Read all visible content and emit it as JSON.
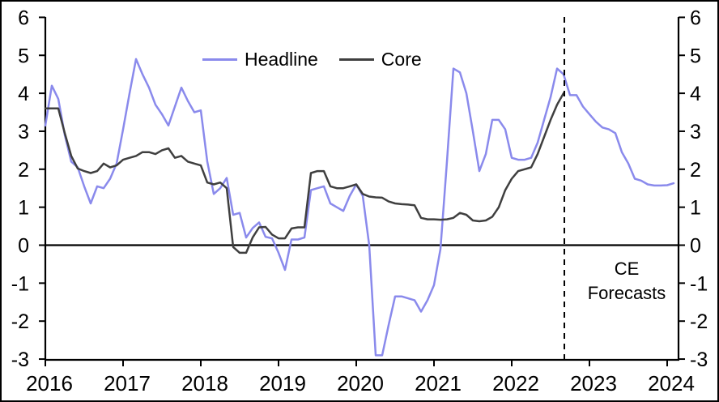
{
  "legend": {
    "headline_label": "Headline",
    "core_label": "Core"
  },
  "annotation": {
    "ce_line1": "CE",
    "ce_line2": "Forecasts"
  },
  "colors": {
    "headline": "#8a8aec",
    "core": "#3f3f3f",
    "axis": "#000000",
    "background": "#ffffff"
  },
  "chart_data": {
    "type": "line",
    "title": "",
    "xlabel": "",
    "ylabel": "",
    "x_unit": "month",
    "x_start": "2016-01",
    "ylim": [
      -3,
      6
    ],
    "y_ticks": [
      6,
      5,
      4,
      3,
      2,
      1,
      0,
      -1,
      -2,
      -3
    ],
    "x_ticks": [
      2016,
      2017,
      2018,
      2019,
      2020,
      2021,
      2022,
      2023,
      2024
    ],
    "grid": false,
    "zero_line": true,
    "legend_position": "top-center",
    "forecast_divider_month_index": 80,
    "forecast_note": "CE Forecasts",
    "series": [
      {
        "name": "Headline",
        "color": "#8a8aec",
        "start": "2016-01",
        "values": [
          3.15,
          4.2,
          3.85,
          2.9,
          2.2,
          2.05,
          1.55,
          1.1,
          1.55,
          1.5,
          1.75,
          2.15,
          3.05,
          4.0,
          4.9,
          4.5,
          4.15,
          3.7,
          3.45,
          3.15,
          3.65,
          4.15,
          3.8,
          3.5,
          3.55,
          2.2,
          1.35,
          1.5,
          1.77,
          0.8,
          0.85,
          0.2,
          0.45,
          0.6,
          0.22,
          0.18,
          -0.2,
          -0.65,
          0.15,
          0.15,
          0.2,
          1.45,
          1.5,
          1.55,
          1.1,
          1.0,
          0.9,
          1.3,
          1.6,
          1.3,
          0.0,
          -2.9,
          -2.9,
          -2.1,
          -1.35,
          -1.35,
          -1.4,
          -1.45,
          -1.75,
          -1.45,
          -1.05,
          -0.1,
          2.2,
          4.65,
          4.55,
          4.0,
          3.0,
          1.95,
          2.4,
          3.3,
          3.3,
          3.05,
          2.3,
          2.25,
          2.25,
          2.3,
          2.7,
          3.3,
          3.9,
          4.65,
          4.5,
          3.95,
          3.95,
          3.65,
          3.45,
          3.25,
          3.1,
          3.05,
          2.95,
          2.45,
          2.15,
          1.75,
          1.7,
          1.6,
          1.57,
          1.57,
          1.58,
          1.63
        ]
      },
      {
        "name": "Core",
        "color": "#3f3f3f",
        "start": "2016-01",
        "values": [
          3.6,
          3.6,
          3.6,
          2.95,
          2.35,
          2.02,
          1.95,
          1.9,
          1.95,
          2.15,
          2.05,
          2.1,
          2.25,
          2.3,
          2.35,
          2.45,
          2.45,
          2.4,
          2.5,
          2.55,
          2.3,
          2.35,
          2.2,
          2.15,
          2.1,
          1.65,
          1.6,
          1.65,
          1.5,
          -0.05,
          -0.2,
          -0.2,
          0.2,
          0.47,
          0.48,
          0.28,
          0.18,
          0.18,
          0.44,
          0.47,
          0.47,
          1.9,
          1.95,
          1.95,
          1.55,
          1.5,
          1.5,
          1.55,
          1.6,
          1.35,
          1.28,
          1.26,
          1.25,
          1.15,
          1.1,
          1.08,
          1.07,
          1.05,
          0.72,
          0.68,
          0.68,
          0.67,
          0.68,
          0.72,
          0.85,
          0.8,
          0.65,
          0.63,
          0.65,
          0.75,
          1.0,
          1.45,
          1.75,
          1.95,
          2.0,
          2.05,
          2.4,
          2.85,
          3.3,
          3.7,
          4.0
        ]
      }
    ]
  }
}
